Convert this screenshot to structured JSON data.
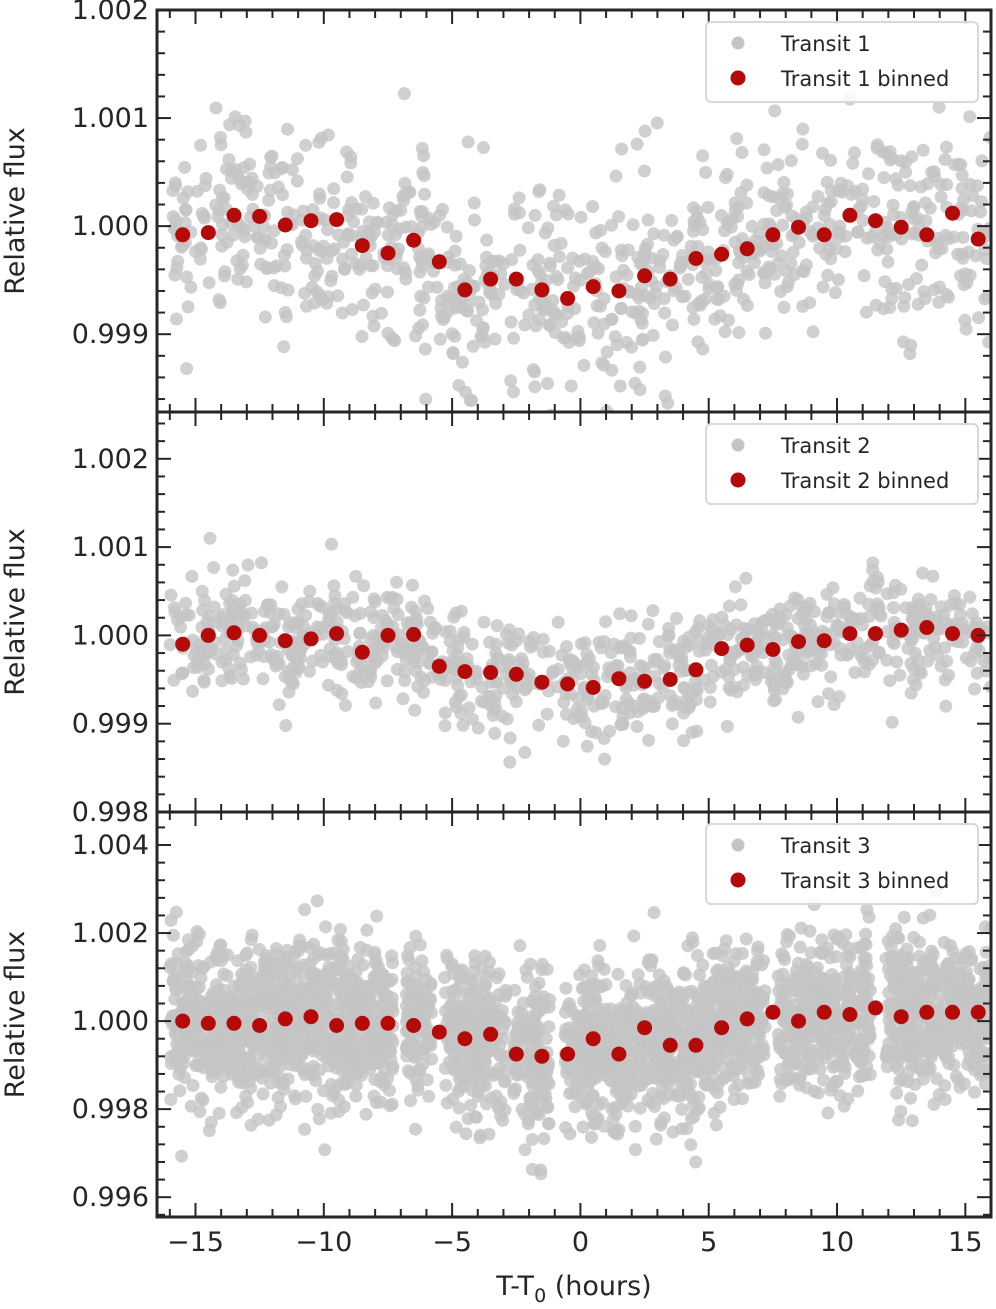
{
  "chart_data": [
    {
      "type": "scatter",
      "ylabel": "Relative flux",
      "xlim": [
        -16.5,
        16.0
      ],
      "ylim": [
        0.99828,
        1.002
      ],
      "yticks": [
        0.999,
        1.0,
        1.001,
        1.002
      ],
      "ytick_labels": [
        "0.999",
        "1.000",
        "1.001",
        "1.002"
      ],
      "legend_position": "top-right",
      "series": [
        {
          "name": "Transit 1",
          "kind": "raw",
          "color": "#c4c4c4",
          "n_points": 900,
          "noise_sigma": 0.00045
        },
        {
          "name": "Transit 1 binned",
          "kind": "binned",
          "color": "#b40a0a",
          "x": [
            -15.5,
            -14.5,
            -13.5,
            -12.5,
            -11.5,
            -10.5,
            -9.5,
            -8.5,
            -7.5,
            -6.5,
            -5.5,
            -4.5,
            -3.5,
            -2.5,
            -1.5,
            -0.5,
            0.5,
            1.5,
            2.5,
            3.5,
            4.5,
            5.5,
            6.5,
            7.5,
            8.5,
            9.5,
            10.5,
            11.5,
            12.5,
            13.5,
            14.5,
            15.5
          ],
          "y": [
            0.99992,
            0.99994,
            1.0001,
            1.00009,
            1.00001,
            1.00005,
            1.00006,
            0.99982,
            0.99975,
            0.99987,
            0.99967,
            0.99941,
            0.99951,
            0.99951,
            0.99941,
            0.99933,
            0.99944,
            0.9994,
            0.99954,
            0.99951,
            0.9997,
            0.99974,
            0.99979,
            0.99992,
            0.99999,
            0.99992,
            1.0001,
            1.00005,
            0.99999,
            0.99992,
            1.00012,
            0.99988
          ]
        }
      ]
    },
    {
      "type": "scatter",
      "ylabel": "Relative flux",
      "xlim": [
        -16.5,
        16.0
      ],
      "ylim": [
        0.998,
        1.00253
      ],
      "yticks": [
        0.998,
        0.999,
        1.0,
        1.001,
        1.002
      ],
      "ytick_labels": [
        "0.998",
        "0.999",
        "1.000",
        "1.001",
        "1.002"
      ],
      "legend_position": "top-right",
      "series": [
        {
          "name": "Transit 2",
          "kind": "raw",
          "color": "#c4c4c4",
          "n_points": 950,
          "noise_sigma": 0.00032
        },
        {
          "name": "Transit 2  binned",
          "kind": "binned",
          "color": "#b40a0a",
          "x": [
            -15.5,
            -14.5,
            -13.5,
            -12.5,
            -11.5,
            -10.5,
            -9.5,
            -8.5,
            -7.5,
            -6.5,
            -5.5,
            -4.5,
            -3.5,
            -2.5,
            -1.5,
            -0.5,
            0.5,
            1.5,
            2.5,
            3.5,
            4.5,
            5.5,
            6.5,
            7.5,
            8.5,
            9.5,
            10.5,
            11.5,
            12.5,
            13.5,
            14.5,
            15.5
          ],
          "y": [
            0.9999,
            1.0,
            1.00003,
            1.0,
            0.99994,
            0.99996,
            1.00002,
            0.99981,
            1.0,
            1.00001,
            0.99965,
            0.99959,
            0.99958,
            0.99956,
            0.99947,
            0.99945,
            0.99941,
            0.99951,
            0.99948,
            0.9995,
            0.99961,
            0.99985,
            0.99989,
            0.99984,
            0.99993,
            0.99994,
            1.00002,
            1.00002,
            1.00006,
            1.00009,
            1.00002,
            1.0
          ]
        }
      ]
    },
    {
      "type": "scatter",
      "ylabel": "Relative flux",
      "xlabel": "T-T0 (hours)",
      "xlim": [
        -16.5,
        16.0
      ],
      "xticks": [
        -15,
        -10,
        -5,
        0,
        5,
        10,
        15
      ],
      "xtick_labels": [
        "−15",
        "−10",
        "−5",
        "0",
        "5",
        "10",
        "15"
      ],
      "ylim": [
        0.99555,
        1.00475
      ],
      "yticks": [
        0.996,
        0.998,
        1.0,
        1.002,
        1.004
      ],
      "ytick_labels": [
        "0.996",
        "0.998",
        "1.000",
        "1.002",
        "1.004"
      ],
      "legend_position": "top-right",
      "series": [
        {
          "name": "Transit 3",
          "kind": "raw",
          "color": "#c4c4c4",
          "n_points": 3200,
          "noise_sigma": 0.00085
        },
        {
          "name": "Transit 3 binned",
          "kind": "binned",
          "color": "#b40a0a",
          "x": [
            -15.5,
            -14.5,
            -13.5,
            -12.5,
            -11.5,
            -10.5,
            -9.5,
            -8.5,
            -7.5,
            -6.5,
            -5.5,
            -4.5,
            -3.5,
            -2.5,
            -1.5,
            -0.5,
            0.5,
            1.5,
            2.5,
            3.5,
            4.5,
            5.5,
            6.5,
            7.5,
            8.5,
            9.5,
            10.5,
            11.5,
            12.5,
            13.5,
            14.5,
            15.5
          ],
          "y": [
            1.0,
            0.99995,
            0.99995,
            0.9999,
            1.00005,
            1.0001,
            0.9999,
            0.99995,
            0.99995,
            0.9999,
            0.99975,
            0.9996,
            0.9997,
            0.99925,
            0.9992,
            0.99925,
            0.9996,
            0.99925,
            0.99985,
            0.99945,
            0.99945,
            0.99985,
            1.00005,
            1.0002,
            1.0,
            1.0002,
            1.00015,
            1.0003,
            1.0001,
            1.0002,
            1.0002,
            1.0002
          ]
        }
      ]
    }
  ]
}
